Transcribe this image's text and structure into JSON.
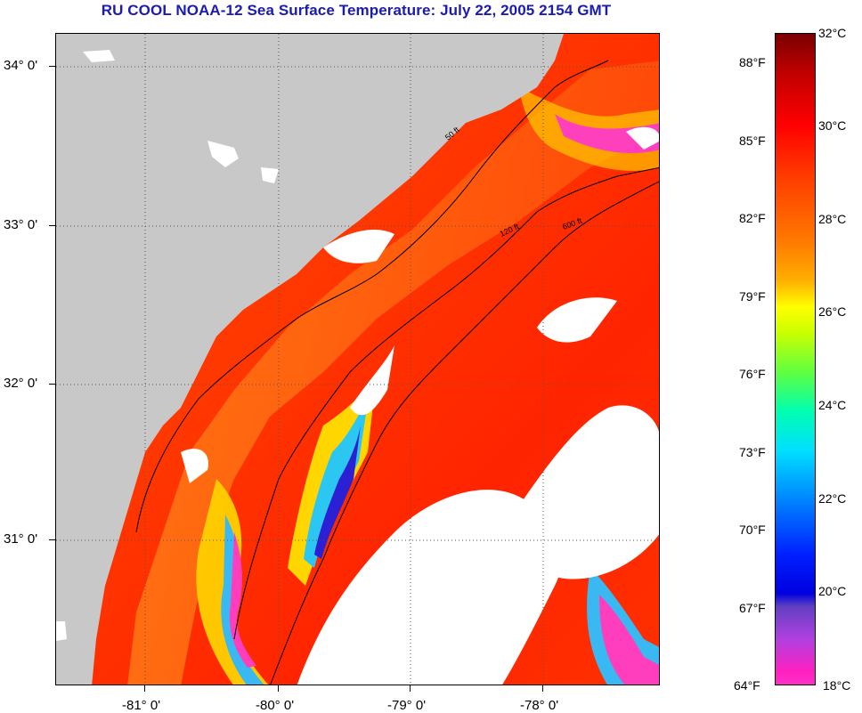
{
  "title": "RU COOL  NOAA-12  Sea Surface Temperature:  July 22, 2005 2154 GMT",
  "map": {
    "latitude_labels": [
      "34° 0'",
      "33° 0'",
      "32° 0'",
      "31° 0'"
    ],
    "longitude_labels": [
      "-81° 0'",
      "-80° 0'",
      "-79° 0'",
      "-78° 0'"
    ],
    "latitude_values": [
      34,
      33,
      32,
      31
    ],
    "longitude_values": [
      -81,
      -80,
      -79,
      -78
    ],
    "contour_labels": [
      "50 ft",
      "120 ft",
      "600 ft"
    ],
    "colors": {
      "land": "#c8c8c8",
      "cloud_mask": "#ffffff",
      "grid": "#555555",
      "contour": "#000000"
    }
  },
  "colorbar": {
    "fahrenheit_labels": [
      "88°F",
      "85°F",
      "82°F",
      "79°F",
      "76°F",
      "73°F",
      "70°F",
      "67°F",
      "64°F"
    ],
    "celsius_labels": [
      "32°C",
      "30°C",
      "28°C",
      "26°C",
      "24°C",
      "22°C",
      "20°C",
      "18°C"
    ],
    "celsius_max": 32,
    "celsius_min": 18
  }
}
